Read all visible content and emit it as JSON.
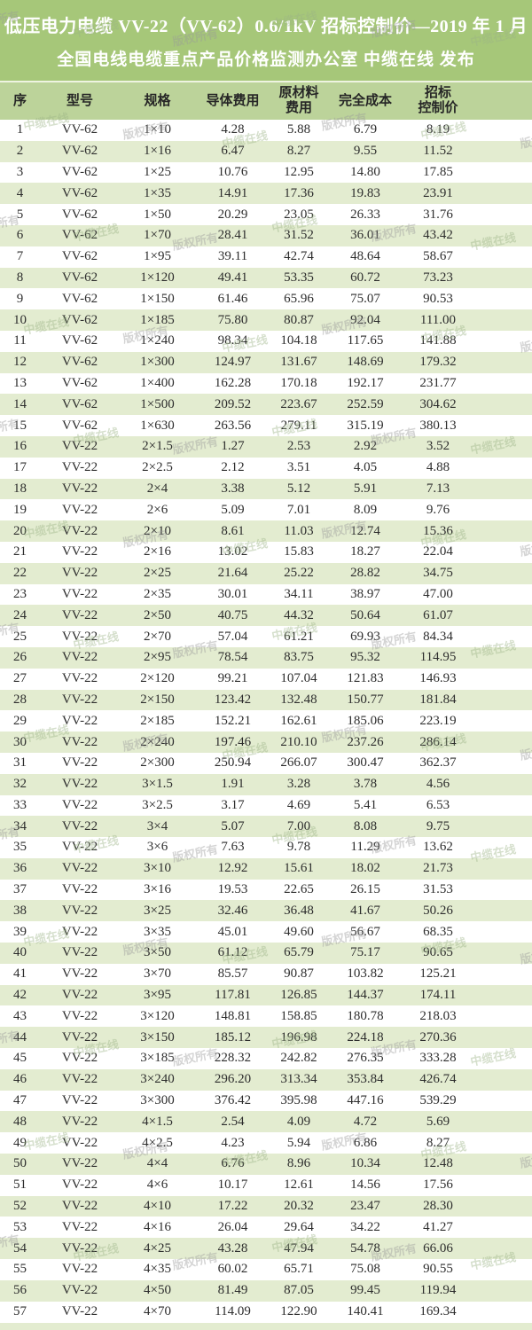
{
  "colors": {
    "banner_green": "#a6c779",
    "header_green": "#bcd39a",
    "stripe_green": "#e3ecd0",
    "wm_gray": "#9a9a9a",
    "wm_green": "#9cb487"
  },
  "header": {
    "title": "低压电力电缆 VV-22（VV-62）0.6/1kV 招标控制价—2019 年 1 月",
    "subtitle": "全国电线电缆重点产品价格监测办公室 中缆在线 发布"
  },
  "watermark": {
    "texts": [
      "版权所有",
      "中缆在线"
    ]
  },
  "table": {
    "headers": [
      [
        "序"
      ],
      [
        "型号"
      ],
      [
        "规格"
      ],
      [
        "导体费用"
      ],
      [
        "原材料",
        "费用"
      ],
      [
        "完全成本"
      ],
      [
        "招标",
        "控制价"
      ]
    ],
    "rows": [
      [
        "1",
        "VV-62",
        "1×10",
        "4.28",
        "5.88",
        "6.79",
        "8.19"
      ],
      [
        "2",
        "VV-62",
        "1×16",
        "6.47",
        "8.27",
        "9.55",
        "11.52"
      ],
      [
        "3",
        "VV-62",
        "1×25",
        "10.76",
        "12.95",
        "14.80",
        "17.85"
      ],
      [
        "4",
        "VV-62",
        "1×35",
        "14.91",
        "17.36",
        "19.83",
        "23.91"
      ],
      [
        "5",
        "VV-62",
        "1×50",
        "20.29",
        "23.05",
        "26.33",
        "31.76"
      ],
      [
        "6",
        "VV-62",
        "1×70",
        "28.41",
        "31.52",
        "36.01",
        "43.42"
      ],
      [
        "7",
        "VV-62",
        "1×95",
        "39.11",
        "42.74",
        "48.64",
        "58.67"
      ],
      [
        "8",
        "VV-62",
        "1×120",
        "49.41",
        "53.35",
        "60.72",
        "73.23"
      ],
      [
        "9",
        "VV-62",
        "1×150",
        "61.46",
        "65.96",
        "75.07",
        "90.53"
      ],
      [
        "10",
        "VV-62",
        "1×185",
        "75.80",
        "80.87",
        "92.04",
        "111.00"
      ],
      [
        "11",
        "VV-62",
        "1×240",
        "98.34",
        "104.18",
        "117.65",
        "141.88"
      ],
      [
        "12",
        "VV-62",
        "1×300",
        "124.97",
        "131.67",
        "148.69",
        "179.32"
      ],
      [
        "13",
        "VV-62",
        "1×400",
        "162.28",
        "170.18",
        "192.17",
        "231.77"
      ],
      [
        "14",
        "VV-62",
        "1×500",
        "209.52",
        "223.67",
        "252.59",
        "304.62"
      ],
      [
        "15",
        "VV-62",
        "1×630",
        "263.56",
        "279.11",
        "315.19",
        "380.13"
      ],
      [
        "16",
        "VV-22",
        "2×1.5",
        "1.27",
        "2.53",
        "2.92",
        "3.52"
      ],
      [
        "17",
        "VV-22",
        "2×2.5",
        "2.12",
        "3.51",
        "4.05",
        "4.88"
      ],
      [
        "18",
        "VV-22",
        "2×4",
        "3.38",
        "5.12",
        "5.91",
        "7.13"
      ],
      [
        "19",
        "VV-22",
        "2×6",
        "5.09",
        "7.01",
        "8.09",
        "9.76"
      ],
      [
        "20",
        "VV-22",
        "2×10",
        "8.61",
        "11.03",
        "12.74",
        "15.36"
      ],
      [
        "21",
        "VV-22",
        "2×16",
        "13.02",
        "15.83",
        "18.27",
        "22.04"
      ],
      [
        "22",
        "VV-22",
        "2×25",
        "21.64",
        "25.22",
        "28.82",
        "34.75"
      ],
      [
        "23",
        "VV-22",
        "2×35",
        "30.01",
        "34.11",
        "38.97",
        "47.00"
      ],
      [
        "24",
        "VV-22",
        "2×50",
        "40.75",
        "44.32",
        "50.64",
        "61.07"
      ],
      [
        "25",
        "VV-22",
        "2×70",
        "57.04",
        "61.21",
        "69.93",
        "84.34"
      ],
      [
        "26",
        "VV-22",
        "2×95",
        "78.54",
        "83.75",
        "95.32",
        "114.95"
      ],
      [
        "27",
        "VV-22",
        "2×120",
        "99.21",
        "107.04",
        "121.83",
        "146.93"
      ],
      [
        "28",
        "VV-22",
        "2×150",
        "123.42",
        "132.48",
        "150.77",
        "181.84"
      ],
      [
        "29",
        "VV-22",
        "2×185",
        "152.21",
        "162.61",
        "185.06",
        "223.19"
      ],
      [
        "30",
        "VV-22",
        "2×240",
        "197.46",
        "210.10",
        "237.26",
        "286.14"
      ],
      [
        "31",
        "VV-22",
        "2×300",
        "250.94",
        "266.07",
        "300.47",
        "362.37"
      ],
      [
        "32",
        "VV-22",
        "3×1.5",
        "1.91",
        "3.28",
        "3.78",
        "4.56"
      ],
      [
        "33",
        "VV-22",
        "3×2.5",
        "3.17",
        "4.69",
        "5.41",
        "6.53"
      ],
      [
        "34",
        "VV-22",
        "3×4",
        "5.07",
        "7.00",
        "8.08",
        "9.75"
      ],
      [
        "35",
        "VV-22",
        "3×6",
        "7.63",
        "9.78",
        "11.29",
        "13.62"
      ],
      [
        "36",
        "VV-22",
        "3×10",
        "12.92",
        "15.61",
        "18.02",
        "21.73"
      ],
      [
        "37",
        "VV-22",
        "3×16",
        "19.53",
        "22.65",
        "26.15",
        "31.53"
      ],
      [
        "38",
        "VV-22",
        "3×25",
        "32.46",
        "36.48",
        "41.67",
        "50.26"
      ],
      [
        "39",
        "VV-22",
        "3×35",
        "45.01",
        "49.60",
        "56.67",
        "68.35"
      ],
      [
        "40",
        "VV-22",
        "3×50",
        "61.12",
        "65.79",
        "75.17",
        "90.65"
      ],
      [
        "41",
        "VV-22",
        "3×70",
        "85.57",
        "90.87",
        "103.82",
        "125.21"
      ],
      [
        "42",
        "VV-22",
        "3×95",
        "117.81",
        "126.85",
        "144.37",
        "174.11"
      ],
      [
        "43",
        "VV-22",
        "3×120",
        "148.81",
        "158.85",
        "180.78",
        "218.03"
      ],
      [
        "44",
        "VV-22",
        "3×150",
        "185.12",
        "196.98",
        "224.18",
        "270.36"
      ],
      [
        "45",
        "VV-22",
        "3×185",
        "228.32",
        "242.82",
        "276.35",
        "333.28"
      ],
      [
        "46",
        "VV-22",
        "3×240",
        "296.20",
        "313.34",
        "353.84",
        "426.74"
      ],
      [
        "47",
        "VV-22",
        "3×300",
        "376.42",
        "395.98",
        "447.16",
        "539.29"
      ],
      [
        "48",
        "VV-22",
        "4×1.5",
        "2.54",
        "4.09",
        "4.72",
        "5.69"
      ],
      [
        "49",
        "VV-22",
        "4×2.5",
        "4.23",
        "5.94",
        "6.86",
        "8.27"
      ],
      [
        "50",
        "VV-22",
        "4×4",
        "6.76",
        "8.96",
        "10.34",
        "12.48"
      ],
      [
        "51",
        "VV-22",
        "4×6",
        "10.17",
        "12.61",
        "14.56",
        "17.56"
      ],
      [
        "52",
        "VV-22",
        "4×10",
        "17.22",
        "20.32",
        "23.47",
        "28.30"
      ],
      [
        "53",
        "VV-22",
        "4×16",
        "26.04",
        "29.64",
        "34.22",
        "41.27"
      ],
      [
        "54",
        "VV-22",
        "4×25",
        "43.28",
        "47.94",
        "54.78",
        "66.06"
      ],
      [
        "55",
        "VV-22",
        "4×35",
        "60.02",
        "65.71",
        "75.08",
        "90.55"
      ],
      [
        "56",
        "VV-22",
        "4×50",
        "81.49",
        "87.05",
        "99.45",
        "119.94"
      ],
      [
        "57",
        "VV-22",
        "4×70",
        "114.09",
        "122.90",
        "140.41",
        "169.34"
      ]
    ]
  }
}
